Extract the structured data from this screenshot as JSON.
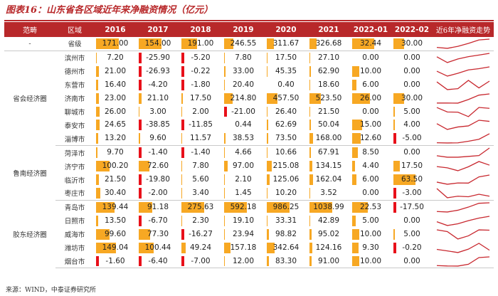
{
  "title": "图表16：山东省各区域近年来净融资情况（亿元）",
  "source": "来源：WIND，中泰证券研究所",
  "colors": {
    "header_bg": "#b8282a",
    "positive_bar": "#f7a823",
    "negative_bar": "#e8101a",
    "sparkline": "#c8282f"
  },
  "header": {
    "range": "范畴",
    "region": "区域",
    "years": [
      "2016",
      "2017",
      "2018",
      "2019",
      "2020",
      "2021",
      "2022-01",
      "2022-02"
    ],
    "trend": "近6年净融资走势"
  },
  "groups": [
    {
      "name": "-",
      "rows": [
        {
          "city": "省级",
          "values": [
            "171.00",
            "154.00",
            "191.00",
            "246.55",
            "311.67",
            "326.68",
            "32.44",
            "30.00"
          ]
        }
      ]
    },
    {
      "name": "省会经济圈",
      "rows": [
        {
          "city": "滨州市",
          "values": [
            "7.20",
            "-25.90",
            "-5.20",
            "7.80",
            "17.50",
            "27.10",
            "0.00",
            "0.00"
          ]
        },
        {
          "city": "德州市",
          "values": [
            "21.00",
            "-26.93",
            "-0.22",
            "33.00",
            "45.35",
            "62.90",
            "10.00",
            "0.00"
          ]
        },
        {
          "city": "东营市",
          "values": [
            "16.40",
            "-4.20",
            "-1.80",
            "20.40",
            "0.40",
            "18.60",
            "6.00",
            "0.00"
          ]
        },
        {
          "city": "济南市",
          "values": [
            "23.00",
            "21.10",
            "17.50",
            "214.80",
            "457.50",
            "523.50",
            "26.00",
            "30.00"
          ]
        },
        {
          "city": "聊城市",
          "values": [
            "26.00",
            "3.00",
            "2.00",
            "-21.00",
            "26.40",
            "21.50",
            "0.00",
            "5.00"
          ]
        },
        {
          "city": "泰安市",
          "values": [
            "24.65",
            "-38.85",
            "-11.85",
            "0.44",
            "62.69",
            "50.04",
            "15.00",
            "4.00"
          ]
        },
        {
          "city": "淄博市",
          "values": [
            "13.20",
            "9.60",
            "11.57",
            "38.53",
            "73.50",
            "168.00",
            "12.60",
            "-5.00"
          ]
        }
      ]
    },
    {
      "name": "鲁南经济圈",
      "rows": [
        {
          "city": "菏泽市",
          "values": [
            "9.70",
            "-1.40",
            "-1.40",
            "4.66",
            "10.66",
            "67.91",
            "8.50",
            "0.00"
          ]
        },
        {
          "city": "济宁市",
          "values": [
            "100.20",
            "72.60",
            "7.80",
            "97.00",
            "215.08",
            "134.15",
            "4.40",
            "17.50"
          ]
        },
        {
          "city": "临沂市",
          "values": [
            "21.50",
            "-19.80",
            "5.60",
            "2.10",
            "125.06",
            "162.04",
            "6.00",
            "63.50"
          ]
        },
        {
          "city": "枣庄市",
          "values": [
            "30.40",
            "-2.00",
            "3.40",
            "1.45",
            "10.20",
            "3.52",
            "0.00",
            "-3.00"
          ]
        }
      ]
    },
    {
      "name": "胶东经济圈",
      "rows": [
        {
          "city": "青岛市",
          "values": [
            "139.44",
            "91.18",
            "275.63",
            "592.18",
            "986.25",
            "1038.99",
            "22.53",
            "-17.50"
          ]
        },
        {
          "city": "日照市",
          "values": [
            "13.50",
            "-6.70",
            "2.30",
            "19.10",
            "33.31",
            "42.89",
            "5.00",
            "0.00"
          ]
        },
        {
          "city": "威海市",
          "values": [
            "99.60",
            "77.30",
            "-16.27",
            "23.94",
            "98.82",
            "95.02",
            "10.00",
            "5.00"
          ]
        },
        {
          "city": "潍坊市",
          "values": [
            "149.04",
            "100.44",
            "49.24",
            "157.18",
            "342.64",
            "124.16",
            "9.30",
            "-0.20"
          ]
        },
        {
          "city": "烟台市",
          "values": [
            "-1.60",
            "-6.40",
            "-7.00",
            "12.00",
            "83.30",
            "91.00",
            "10.00",
            "0.00"
          ]
        }
      ]
    }
  ]
}
